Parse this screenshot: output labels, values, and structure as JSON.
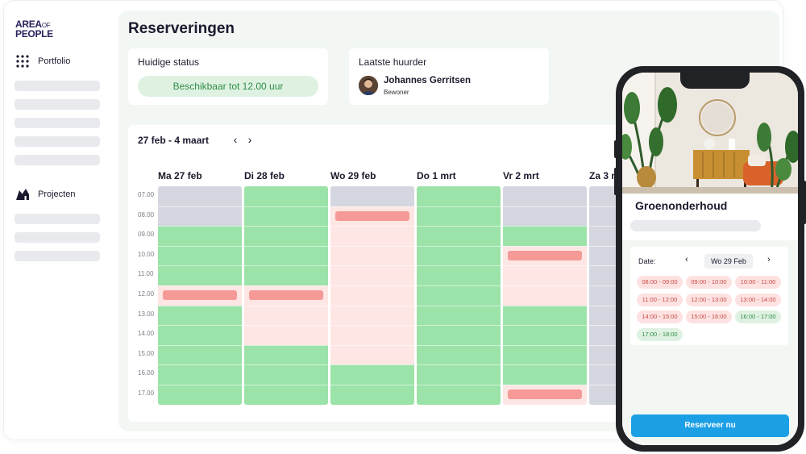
{
  "app": {
    "logo_line1": "AREA",
    "logo_of": "OF",
    "logo_line2": "PEOPLE"
  },
  "sidebar": {
    "items": [
      {
        "label": "Portfolio",
        "icon": "grid-dots-icon"
      },
      {
        "label": "Projecten",
        "icon": "buildings-icon"
      }
    ]
  },
  "page": {
    "title": "Reserveringen"
  },
  "status_card": {
    "label": "Huidige status",
    "value": "Beschikbaar tot 12.00 uur",
    "color": "#2f8c45"
  },
  "renter_card": {
    "label": "Laatste huurder",
    "name": "Johannes Gerritsen",
    "role": "Bewoner"
  },
  "calendar": {
    "range": "27 feb - 4 maart",
    "prev_icon": "chevron-left-icon",
    "next_icon": "chevron-right-icon",
    "times": [
      "07.00",
      "08.00",
      "09.00",
      "10.00",
      "11.00",
      "12.00",
      "13.00",
      "14.00",
      "15.00",
      "16.00",
      "17.00"
    ],
    "colors": {
      "available": "#9be3a8",
      "unavailable": "#d5d7e0",
      "reserved_block": "#fde6e4",
      "booking": "#f59a96"
    },
    "days": [
      {
        "label": "Ma 27 feb",
        "segments": [
          {
            "state": "unavailable",
            "from": 7,
            "to": 9
          },
          {
            "state": "available",
            "from": 9,
            "to": 12
          },
          {
            "state": "reserved",
            "from": 12,
            "to": 13
          },
          {
            "state": "available",
            "from": 13,
            "to": 18
          }
        ],
        "bookings": [
          12.25
        ]
      },
      {
        "label": "Di 28 feb",
        "segments": [
          {
            "state": "available",
            "from": 7,
            "to": 12
          },
          {
            "state": "reserved",
            "from": 12,
            "to": 15
          },
          {
            "state": "available",
            "from": 15,
            "to": 18
          }
        ],
        "bookings": [
          12.25
        ]
      },
      {
        "label": "Wo 29 feb",
        "segments": [
          {
            "state": "unavailable",
            "from": 7,
            "to": 8
          },
          {
            "state": "reserved",
            "from": 8,
            "to": 16
          },
          {
            "state": "available",
            "from": 16,
            "to": 18
          }
        ],
        "bookings": [
          8.25
        ]
      },
      {
        "label": "Do 1 mrt",
        "segments": [
          {
            "state": "available",
            "from": 7,
            "to": 18
          }
        ],
        "bookings": []
      },
      {
        "label": "Vr 2 mrt",
        "segments": [
          {
            "state": "unavailable",
            "from": 7,
            "to": 9
          },
          {
            "state": "available",
            "from": 9,
            "to": 10
          },
          {
            "state": "reserved",
            "from": 10,
            "to": 13
          },
          {
            "state": "available",
            "from": 13,
            "to": 17
          },
          {
            "state": "reserved",
            "from": 17,
            "to": 18
          }
        ],
        "bookings": [
          10.25,
          17.25
        ]
      },
      {
        "label": "Za 3 mrt",
        "segments": [
          {
            "state": "unavailable",
            "from": 7,
            "to": 18
          }
        ],
        "bookings": []
      }
    ]
  },
  "phone": {
    "title": "Groenonderhoud",
    "date_label": "Date:",
    "date_value": "Wo 29 Feb",
    "slots": [
      {
        "time": "08:00 - 09:00",
        "state": "busy"
      },
      {
        "time": "09:00 - 10:00",
        "state": "busy"
      },
      {
        "time": "10:00 - 11:00",
        "state": "busy"
      },
      {
        "time": "11:00 - 12:00",
        "state": "busy"
      },
      {
        "time": "12:00 - 13:00",
        "state": "busy"
      },
      {
        "time": "13:00 - 14:00",
        "state": "busy"
      },
      {
        "time": "14:00 - 15:00",
        "state": "busy"
      },
      {
        "time": "15:00 - 16:00",
        "state": "busy"
      },
      {
        "time": "16:00 - 17:00",
        "state": "free"
      },
      {
        "time": "17:00 - 18:00",
        "state": "free"
      }
    ],
    "button": "Reserveer nu",
    "accent": "#1ba0e5"
  }
}
